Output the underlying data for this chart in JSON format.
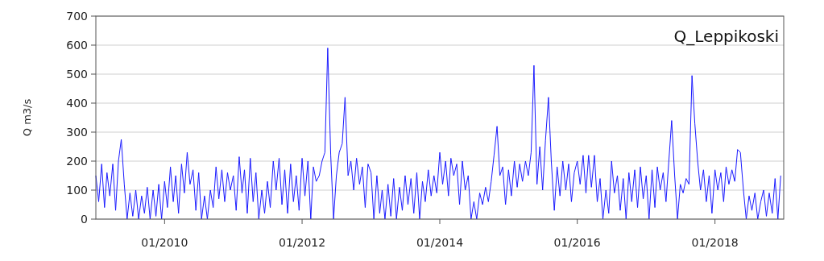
{
  "chart_data": {
    "type": "line",
    "title": "Q_Leppikoski",
    "ylabel": "Q m3/s",
    "xlim": [
      "2009-01-01",
      "2019-01-01"
    ],
    "xticks": [
      {
        "value": "2010-01-01",
        "label": "01/2010"
      },
      {
        "value": "2012-01-01",
        "label": "01/2012"
      },
      {
        "value": "2014-01-01",
        "label": "01/2014"
      },
      {
        "value": "2016-01-01",
        "label": "01/2016"
      },
      {
        "value": "2018-01-01",
        "label": "01/2018"
      }
    ],
    "ylim": [
      0,
      700
    ],
    "yticks": [
      0,
      100,
      200,
      300,
      400,
      500,
      600,
      700
    ],
    "grid": "y",
    "series": [
      {
        "color": "#1a1aff",
        "x": [
          "2009-01-01",
          "2009-01-16",
          "2009-02-01",
          "2009-02-16",
          "2009-03-01",
          "2009-03-16",
          "2009-04-01",
          "2009-04-16",
          "2009-05-01",
          "2009-05-16",
          "2009-06-01",
          "2009-06-16",
          "2009-07-01",
          "2009-07-16",
          "2009-08-01",
          "2009-08-16",
          "2009-09-01",
          "2009-09-16",
          "2009-10-01",
          "2009-10-16",
          "2009-11-01",
          "2009-11-16",
          "2009-12-01",
          "2009-12-16",
          "2010-01-01",
          "2010-01-16",
          "2010-02-01",
          "2010-02-16",
          "2010-03-01",
          "2010-03-16",
          "2010-04-01",
          "2010-04-16",
          "2010-05-01",
          "2010-05-16",
          "2010-06-01",
          "2010-06-16",
          "2010-07-01",
          "2010-07-16",
          "2010-08-01",
          "2010-08-16",
          "2010-09-01",
          "2010-09-16",
          "2010-10-01",
          "2010-10-16",
          "2010-11-01",
          "2010-11-16",
          "2010-12-01",
          "2010-12-16",
          "2011-01-01",
          "2011-01-16",
          "2011-02-01",
          "2011-02-16",
          "2011-03-01",
          "2011-03-16",
          "2011-04-01",
          "2011-04-16",
          "2011-05-01",
          "2011-05-16",
          "2011-06-01",
          "2011-06-16",
          "2011-07-01",
          "2011-07-16",
          "2011-08-01",
          "2011-08-16",
          "2011-09-01",
          "2011-09-16",
          "2011-10-01",
          "2011-10-16",
          "2011-11-01",
          "2011-11-16",
          "2011-12-01",
          "2011-12-16",
          "2012-01-01",
          "2012-01-16",
          "2012-02-01",
          "2012-02-16",
          "2012-03-01",
          "2012-03-16",
          "2012-04-01",
          "2012-04-16",
          "2012-05-01",
          "2012-05-16",
          "2012-06-01",
          "2012-06-16",
          "2012-07-01",
          "2012-07-16",
          "2012-08-01",
          "2012-08-16",
          "2012-09-01",
          "2012-09-16",
          "2012-10-01",
          "2012-10-16",
          "2012-11-01",
          "2012-11-16",
          "2012-12-01",
          "2012-12-16",
          "2013-01-01",
          "2013-01-16",
          "2013-02-01",
          "2013-02-16",
          "2013-03-01",
          "2013-03-16",
          "2013-04-01",
          "2013-04-16",
          "2013-05-01",
          "2013-05-16",
          "2013-06-01",
          "2013-06-16",
          "2013-07-01",
          "2013-07-16",
          "2013-08-01",
          "2013-08-16",
          "2013-09-01",
          "2013-09-16",
          "2013-10-01",
          "2013-10-16",
          "2013-11-01",
          "2013-11-16",
          "2013-12-01",
          "2013-12-16",
          "2014-01-01",
          "2014-01-16",
          "2014-02-01",
          "2014-02-16",
          "2014-03-01",
          "2014-03-16",
          "2014-04-01",
          "2014-04-16",
          "2014-05-01",
          "2014-05-16",
          "2014-06-01",
          "2014-06-16",
          "2014-07-01",
          "2014-07-16",
          "2014-08-01",
          "2014-08-16",
          "2014-09-01",
          "2014-09-16",
          "2014-10-01",
          "2014-10-16",
          "2014-11-01",
          "2014-11-16",
          "2014-12-01",
          "2014-12-16",
          "2015-01-01",
          "2015-01-16",
          "2015-02-01",
          "2015-02-16",
          "2015-03-01",
          "2015-03-16",
          "2015-04-01",
          "2015-04-16",
          "2015-05-01",
          "2015-05-16",
          "2015-06-01",
          "2015-06-16",
          "2015-07-01",
          "2015-07-16",
          "2015-08-01",
          "2015-08-16",
          "2015-09-01",
          "2015-09-16",
          "2015-10-01",
          "2015-10-16",
          "2015-11-01",
          "2015-11-16",
          "2015-12-01",
          "2015-12-16",
          "2016-01-01",
          "2016-01-16",
          "2016-02-01",
          "2016-02-16",
          "2016-03-01",
          "2016-03-16",
          "2016-04-01",
          "2016-04-16",
          "2016-05-01",
          "2016-05-16",
          "2016-06-01",
          "2016-06-16",
          "2016-07-01",
          "2016-07-16",
          "2016-08-01",
          "2016-08-16",
          "2016-09-01",
          "2016-09-16",
          "2016-10-01",
          "2016-10-16",
          "2016-11-01",
          "2016-11-16",
          "2016-12-01",
          "2016-12-16",
          "2017-01-01",
          "2017-01-16",
          "2017-02-01",
          "2017-02-16",
          "2017-03-01",
          "2017-03-16",
          "2017-04-01",
          "2017-04-16",
          "2017-05-01",
          "2017-05-16",
          "2017-06-01",
          "2017-06-16",
          "2017-07-01",
          "2017-07-16",
          "2017-08-01",
          "2017-08-16",
          "2017-09-01",
          "2017-09-16",
          "2017-10-01",
          "2017-10-16",
          "2017-11-01",
          "2017-11-16",
          "2017-12-01",
          "2017-12-16",
          "2018-01-01",
          "2018-01-16",
          "2018-02-01",
          "2018-02-16",
          "2018-03-01",
          "2018-03-16",
          "2018-04-01",
          "2018-04-16",
          "2018-05-01",
          "2018-05-16",
          "2018-06-01",
          "2018-06-16",
          "2018-07-01",
          "2018-07-16",
          "2018-08-01",
          "2018-08-16",
          "2018-09-01",
          "2018-09-16",
          "2018-10-01",
          "2018-10-16",
          "2018-11-01",
          "2018-11-16",
          "2018-12-01",
          "2018-12-16"
        ],
        "values": [
          150,
          60,
          190,
          40,
          160,
          80,
          190,
          30,
          200,
          275,
          120,
          0,
          90,
          10,
          100,
          0,
          80,
          20,
          110,
          0,
          100,
          10,
          120,
          0,
          130,
          40,
          180,
          60,
          150,
          20,
          190,
          90,
          230,
          120,
          170,
          30,
          160,
          0,
          80,
          0,
          100,
          40,
          180,
          70,
          170,
          60,
          160,
          100,
          150,
          30,
          215,
          90,
          170,
          20,
          210,
          60,
          160,
          0,
          100,
          20,
          130,
          40,
          200,
          100,
          210,
          50,
          170,
          20,
          190,
          60,
          150,
          30,
          210,
          80,
          200,
          0,
          180,
          130,
          150,
          200,
          230,
          590,
          220,
          0,
          150,
          230,
          260,
          420,
          150,
          200,
          100,
          210,
          120,
          180,
          40,
          190,
          160,
          0,
          150,
          20,
          100,
          0,
          120,
          10,
          140,
          0,
          110,
          30,
          150,
          50,
          140,
          20,
          160,
          0,
          130,
          60,
          170,
          80,
          150,
          90,
          230,
          120,
          200,
          80,
          210,
          150,
          190,
          50,
          200,
          100,
          150,
          0,
          60,
          0,
          90,
          50,
          110,
          60,
          130,
          220,
          320,
          150,
          180,
          50,
          170,
          80,
          200,
          110,
          190,
          130,
          200,
          150,
          230,
          530,
          120,
          250,
          100,
          270,
          420,
          200,
          30,
          180,
          80,
          200,
          100,
          190,
          60,
          160,
          200,
          120,
          220,
          90,
          220,
          110,
          220,
          60,
          140,
          0,
          100,
          20,
          200,
          90,
          150,
          30,
          140,
          0,
          160,
          60,
          170,
          40,
          180,
          70,
          150,
          0,
          170,
          40,
          180,
          100,
          160,
          60,
          200,
          340,
          150,
          0,
          120,
          90,
          140,
          120,
          495,
          330,
          200,
          100,
          170,
          60,
          150,
          20,
          170,
          100,
          160,
          60,
          180,
          120,
          170,
          130,
          240,
          230,
          100,
          0,
          80,
          30,
          90,
          0,
          60,
          100,
          10,
          90,
          20,
          140,
          0,
          150
        ]
      }
    ]
  }
}
